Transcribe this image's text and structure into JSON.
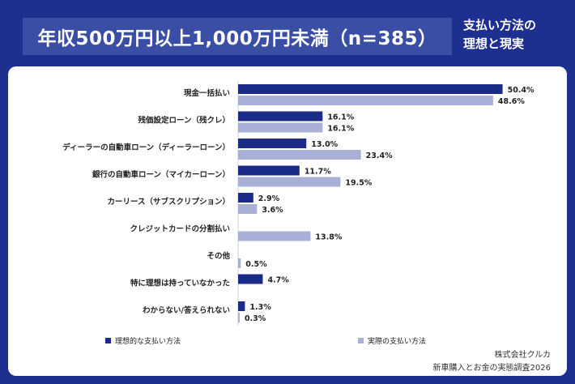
{
  "header": {
    "title": "年収500万円以上1,000万円未満（n=385）",
    "subtitle_line1": "支払い方法の",
    "subtitle_line2": "理想と現実"
  },
  "credit": {
    "company": "株式会社クルカ",
    "survey": "新車購入とお金の実態調査2026"
  },
  "colors": {
    "background": "#1d2f8f",
    "ideal": "#1a2b88",
    "actual": "#a9b0d8"
  },
  "chart_data": {
    "type": "bar",
    "orientation": "horizontal",
    "unit": "%",
    "categories": [
      "現金一括払い",
      "残価設定ローン（残クレ）",
      "ディーラーの自動車ローン（ディーラーローン）",
      "銀行の自動車ローン（マイカーローン）",
      "カーリース（サブスクリプション）",
      "クレジットカードの分割払い",
      "その他",
      "特に理想は持っていなかった",
      "わからない/答えられない"
    ],
    "series": [
      {
        "name": "理想的な支払い方法",
        "values": [
          50.4,
          16.1,
          13.0,
          11.7,
          2.9,
          null,
          null,
          4.7,
          1.3
        ]
      },
      {
        "name": "実際の支払い方法",
        "values": [
          48.6,
          16.1,
          23.4,
          19.5,
          3.6,
          13.8,
          0.5,
          null,
          0.3
        ]
      }
    ],
    "xlim": [
      0,
      60
    ],
    "legend": "bottom"
  }
}
